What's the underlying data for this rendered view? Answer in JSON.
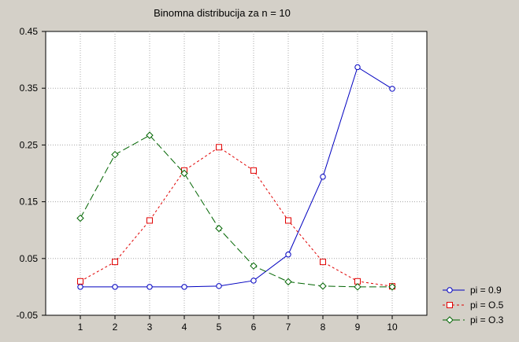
{
  "chart_data": {
    "type": "line",
    "title": "Binomna distribucija za n = 10",
    "xlabel": "",
    "ylabel": "",
    "x": [
      1,
      2,
      3,
      4,
      5,
      6,
      7,
      8,
      9,
      10
    ],
    "xlim": [
      0,
      11
    ],
    "ylim": [
      -0.05,
      0.45
    ],
    "yticks": [
      -0.05,
      0.05,
      0.15,
      0.25,
      0.35,
      0.45
    ],
    "ytick_labels": [
      "-0.05",
      "0.05",
      "0.15",
      "0.25",
      "0.35",
      "0.45"
    ],
    "xtick_labels": [
      "1",
      "2",
      "3",
      "4",
      "5",
      "6",
      "7",
      "8",
      "9",
      "10"
    ],
    "grid": true,
    "legend_position": "bottom-right, outside plot",
    "series": [
      {
        "name": "pi = 0.9",
        "color": "#0000c0",
        "marker": "circle",
        "dash": "solid",
        "values": [
          0.0,
          0.0,
          0.0,
          0.0,
          0.0015,
          0.011,
          0.057,
          0.194,
          0.387,
          0.349
        ]
      },
      {
        "name": "pi = O.5",
        "color": "#e00000",
        "marker": "square",
        "dash": "short-dash",
        "values": [
          0.0098,
          0.044,
          0.117,
          0.205,
          0.246,
          0.205,
          0.117,
          0.044,
          0.0098,
          0.001
        ]
      },
      {
        "name": "pi = O.3",
        "color": "#006400",
        "marker": "diamond",
        "dash": "long-dash",
        "values": [
          0.121,
          0.233,
          0.267,
          0.2,
          0.103,
          0.037,
          0.009,
          0.0014,
          0.0001,
          0.0
        ]
      }
    ]
  }
}
